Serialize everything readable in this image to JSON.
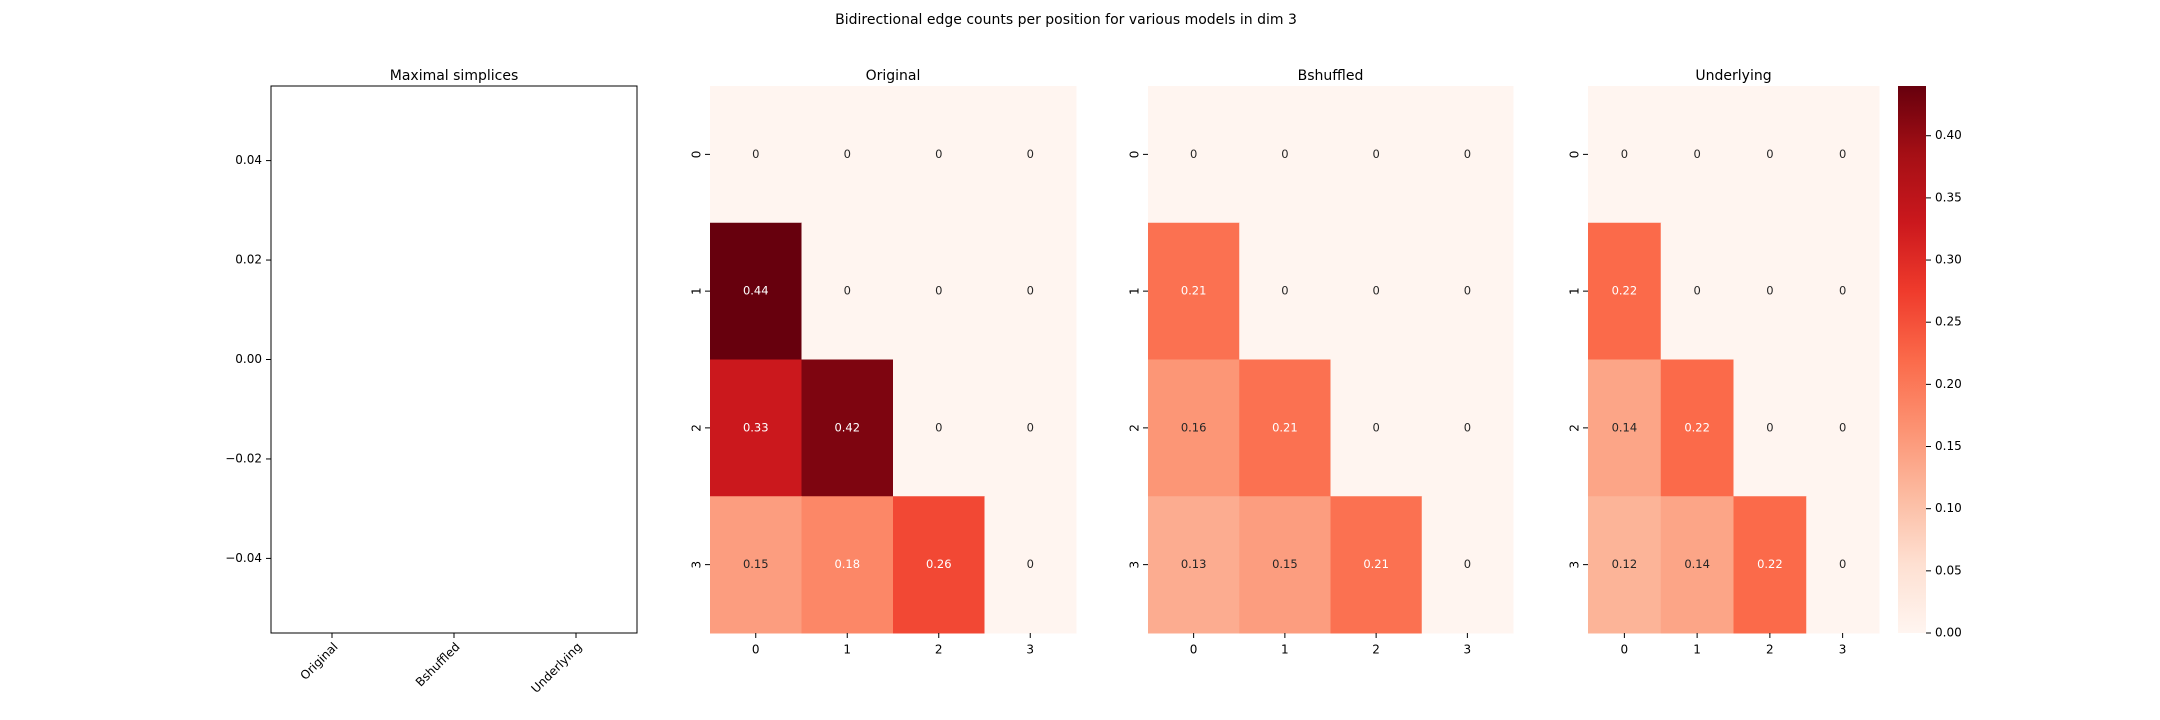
{
  "title": "Bidirectional edge counts per position for various models in dim 3",
  "colorbar": {
    "colormap": "Reds",
    "lim": [
      0,
      0.44
    ],
    "ticks": [
      {
        "value": 0,
        "label": "0.00"
      },
      {
        "value": 0.05,
        "label": "0.05"
      },
      {
        "value": 0.1,
        "label": "0.10"
      },
      {
        "value": 0.15,
        "label": "0.15"
      },
      {
        "value": 0.2,
        "label": "0.20"
      },
      {
        "value": 0.25,
        "label": "0.25"
      },
      {
        "value": 0.3,
        "label": "0.30"
      },
      {
        "value": 0.35,
        "label": "0.35"
      },
      {
        "value": 0.4,
        "label": "0.40"
      }
    ]
  },
  "chart_data": [
    {
      "type": "bar",
      "title": "Maximal simplices",
      "categories": [
        "Original",
        "Bshuffled",
        "Underlying"
      ],
      "ylim": [
        -0.055,
        0.055
      ],
      "yticks": [
        0.04,
        0.02,
        {
          "value": 0,
          "label": "0.00"
        },
        {
          "value": -0.02,
          "label": "−0.02"
        },
        {
          "value": -0.04,
          "label": "−0.04"
        }
      ]
    },
    {
      "type": "heatmap",
      "title": "Original",
      "x_categories": [
        "0",
        "1",
        "2",
        "3"
      ],
      "y_categories": [
        "0",
        "1",
        "2",
        "3"
      ],
      "values": [
        [
          0,
          0,
          0,
          0
        ],
        [
          0.44,
          0,
          0,
          0
        ],
        [
          0.33,
          0.42,
          0,
          0
        ],
        [
          0.15,
          0.18,
          0.26,
          0
        ]
      ]
    },
    {
      "type": "heatmap",
      "title": "Bshuffled",
      "x_categories": [
        "0",
        "1",
        "2",
        "3"
      ],
      "y_categories": [
        "0",
        "1",
        "2",
        "3"
      ],
      "values": [
        [
          0,
          0,
          0,
          0
        ],
        [
          0.21,
          0,
          0,
          0
        ],
        [
          0.16,
          0.21,
          0,
          0
        ],
        [
          0.13,
          0.15,
          0.21,
          0
        ]
      ]
    },
    {
      "type": "heatmap",
      "title": "Underlying",
      "x_categories": [
        "0",
        "1",
        "2",
        "3"
      ],
      "y_categories": [
        "0",
        "1",
        "2",
        "3"
      ],
      "values": [
        [
          0,
          0,
          0,
          0
        ],
        [
          0.22,
          0,
          0,
          0
        ],
        [
          0.14,
          0.22,
          0,
          0
        ],
        [
          0.12,
          0.14,
          0.22,
          0
        ]
      ]
    }
  ]
}
